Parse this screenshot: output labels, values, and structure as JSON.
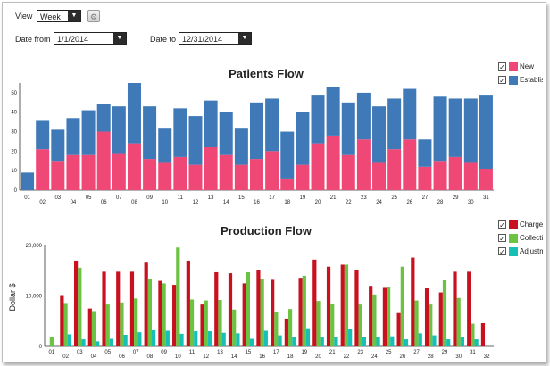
{
  "controls": {
    "view_label": "View",
    "view_value": "Week",
    "date_from_label": "Date from",
    "date_from_value": "1/1/2014",
    "date_to_label": "Date to",
    "date_to_value": "12/31/2014"
  },
  "icons": {
    "dropdown": "chevron-down-icon",
    "settings": "gear-icon",
    "checkbox": "check-icon"
  },
  "colors": {
    "new": "#f04876",
    "established": "#3f79b8",
    "charges": "#c8101e",
    "collections": "#6cc241",
    "adjustments": "#17bfb7"
  },
  "legend_patients": [
    {
      "label": "New",
      "checked": "✓"
    },
    {
      "label": "Established",
      "checked": "✓"
    }
  ],
  "legend_production": [
    {
      "label": "Charges",
      "checked": "✓"
    },
    {
      "label": "Collections",
      "checked": "✓"
    },
    {
      "label": "Adjustments",
      "checked": "✓"
    }
  ],
  "chart_data": [
    {
      "type": "bar",
      "stacked": true,
      "title": "Patients Flow",
      "ylabel": "",
      "ylim": [
        0,
        55
      ],
      "yticks": [
        0,
        10,
        20,
        30,
        40,
        50
      ],
      "categories": [
        "01",
        "02",
        "03",
        "04",
        "05",
        "06",
        "07",
        "08",
        "09",
        "10",
        "11",
        "12",
        "13",
        "14",
        "15",
        "16",
        "17",
        "18",
        "19",
        "20",
        "21",
        "22",
        "23",
        "24",
        "25",
        "26",
        "27",
        "28",
        "29",
        "30",
        "31"
      ],
      "series": [
        {
          "name": "New",
          "values": [
            0,
            21,
            15,
            18,
            18,
            30,
            19,
            24,
            16,
            14,
            17,
            13,
            22,
            18,
            13,
            16,
            20,
            6,
            13,
            24,
            28,
            18,
            26,
            14,
            21,
            26,
            12,
            15,
            17,
            14,
            11
          ]
        },
        {
          "name": "Established",
          "values": [
            9,
            15,
            16,
            19,
            23,
            14,
            24,
            31,
            27,
            18,
            25,
            25,
            24,
            22,
            19,
            29,
            27,
            24,
            27,
            25,
            25,
            27,
            24,
            29,
            26,
            26,
            14,
            33,
            30,
            33,
            38
          ]
        }
      ],
      "legend": "top-right"
    },
    {
      "type": "bar",
      "title": "Production Flow",
      "ylabel": "Dollar $",
      "ylim": [
        0,
        20000
      ],
      "yticks": [
        0,
        10000,
        20000
      ],
      "ytick_labels": [
        "0",
        "10,000",
        "20,000"
      ],
      "categories": [
        "01",
        "02",
        "03",
        "04",
        "05",
        "06",
        "07",
        "08",
        "09",
        "10",
        "11",
        "12",
        "13",
        "14",
        "15",
        "16",
        "17",
        "18",
        "19",
        "20",
        "21",
        "22",
        "23",
        "24",
        "25",
        "26",
        "27",
        "28",
        "29",
        "30",
        "31",
        "32"
      ],
      "series": [
        {
          "name": "Charges",
          "values": [
            0,
            10000,
            17000,
            7500,
            14800,
            14800,
            14800,
            16600,
            13000,
            12200,
            17000,
            8300,
            14700,
            14500,
            12500,
            15200,
            13200,
            5500,
            13600,
            17200,
            15800,
            16200,
            15200,
            12000,
            11600,
            6600,
            17600,
            11500,
            10700,
            14800,
            14800,
            4600
          ]
        },
        {
          "name": "Collections",
          "values": [
            1800,
            8600,
            15600,
            7000,
            8300,
            8700,
            9500,
            13400,
            12500,
            19600,
            9300,
            9100,
            9200,
            7300,
            14700,
            13300,
            6800,
            7400,
            14000,
            9000,
            8400,
            16200,
            8300,
            10300,
            11800,
            15800,
            9100,
            8300,
            13100,
            9600,
            4500,
            0
          ]
        },
        {
          "name": "Adjustments",
          "values": [
            0,
            2400,
            1400,
            1000,
            1500,
            2300,
            2800,
            3200,
            3100,
            2500,
            3000,
            3000,
            2700,
            2600,
            1500,
            3100,
            2200,
            1900,
            3600,
            1800,
            1900,
            3400,
            1900,
            1900,
            2000,
            1400,
            2600,
            2200,
            1400,
            1800,
            1400,
            0
          ]
        }
      ],
      "legend": "top-right"
    }
  ]
}
